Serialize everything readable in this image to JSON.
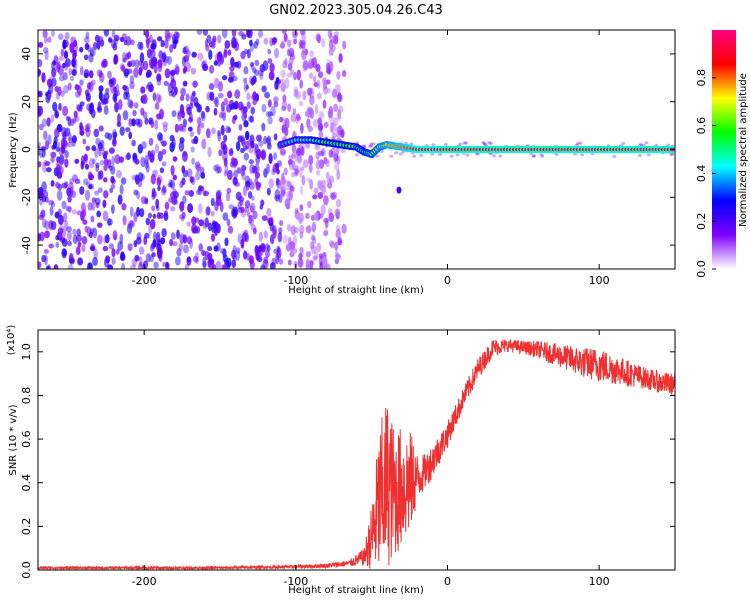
{
  "title": "GN02.2023.305.04.26.C43",
  "colors": {
    "snr_line": "#f03030",
    "background": "#ffffff",
    "frame": "#000000"
  },
  "chart_data": [
    {
      "type": "heatmap",
      "xlabel": "Height of straight line (km)",
      "ylabel": "Frequency (Hz)",
      "xlim": [
        -270,
        150
      ],
      "ylim": [
        -50,
        50
      ],
      "x_ticks": [
        -200,
        -100,
        0,
        100
      ],
      "x_tick_labels": [
        "-200",
        "-100",
        "0",
        "100"
      ],
      "y_ticks": [
        -40,
        -20,
        0,
        20,
        40
      ],
      "y_tick_labels": [
        "-40",
        "-20",
        "0",
        "20",
        "40"
      ],
      "colorbar": {
        "label": "Normalized spectral amplitude",
        "range": [
          0,
          1
        ],
        "ticks": [
          0,
          0.2,
          0.4,
          0.6,
          0.8
        ],
        "tick_labels": [
          "0.0",
          "0.2",
          "0.4",
          "0.6",
          "0.8"
        ],
        "colormap": [
          "#ffffff",
          "#7f00ff",
          "#0000ff",
          "#00ffff",
          "#00ff00",
          "#ffff00",
          "#ff0000",
          "#ff0080"
        ]
      },
      "noise_region_xlim": [
        -270,
        -68
      ],
      "signal_track": [
        {
          "x": -110,
          "y": 2,
          "v": 0.35
        },
        {
          "x": -100,
          "y": 4,
          "v": 0.45
        },
        {
          "x": -90,
          "y": 4,
          "v": 0.5
        },
        {
          "x": -80,
          "y": 3,
          "v": 0.55
        },
        {
          "x": -70,
          "y": 2,
          "v": 0.55
        },
        {
          "x": -60,
          "y": 1,
          "v": 0.6
        },
        {
          "x": -55,
          "y": -1,
          "v": 0.6
        },
        {
          "x": -50,
          "y": -2,
          "v": 0.65
        },
        {
          "x": -45,
          "y": 1,
          "v": 0.7
        },
        {
          "x": -40,
          "y": 2,
          "v": 0.75
        },
        {
          "x": -30,
          "y": 1,
          "v": 0.8
        },
        {
          "x": -20,
          "y": 0,
          "v": 0.85
        },
        {
          "x": 0,
          "y": 0,
          "v": 0.9
        },
        {
          "x": 50,
          "y": 0,
          "v": 0.92
        },
        {
          "x": 100,
          "y": 0,
          "v": 0.9
        },
        {
          "x": 150,
          "y": 0,
          "v": 0.9
        }
      ],
      "outlier": {
        "x": -32,
        "y": -17
      }
    },
    {
      "type": "line",
      "xlabel": "Height of straight line (km)",
      "ylabel": "SNR (10 * v/v)",
      "y_multiplier": "(x10⁴)",
      "xlim": [
        -270,
        150
      ],
      "ylim": [
        0,
        1.1
      ],
      "x_ticks": [
        -200,
        -100,
        0,
        100
      ],
      "x_tick_labels": [
        "-200",
        "-100",
        "0",
        "100"
      ],
      "y_ticks": [
        0,
        0.2,
        0.4,
        0.6,
        0.8,
        1.0
      ],
      "y_tick_labels": [
        "0.0",
        "0.2",
        "0.4",
        "0.6",
        "0.8",
        "1.0"
      ],
      "series": [
        {
          "x": [
            -270,
            -200,
            -150,
            -100,
            -80,
            -65,
            -55,
            -50,
            -45,
            -40,
            -35,
            -30,
            -25,
            -20,
            -15,
            -10,
            -5,
            0,
            10,
            20,
            30,
            40,
            50,
            60,
            70,
            80,
            90,
            100,
            110,
            120,
            130,
            140,
            150
          ],
          "y": [
            0.01,
            0.01,
            0.01,
            0.015,
            0.02,
            0.03,
            0.06,
            0.15,
            0.3,
            0.4,
            0.35,
            0.38,
            0.4,
            0.42,
            0.45,
            0.5,
            0.56,
            0.62,
            0.78,
            0.92,
            1.02,
            1.03,
            1.02,
            1.01,
            0.99,
            0.97,
            0.95,
            0.94,
            0.92,
            0.9,
            0.88,
            0.86,
            0.85
          ],
          "noise_amp": [
            0.005,
            0.006,
            0.006,
            0.008,
            0.01,
            0.015,
            0.04,
            0.15,
            0.35,
            0.4,
            0.3,
            0.28,
            0.25,
            0.12,
            0.08,
            0.08,
            0.07,
            0.06,
            0.05,
            0.05,
            0.04,
            0.03,
            0.03,
            0.04,
            0.05,
            0.06,
            0.07,
            0.08,
            0.07,
            0.06,
            0.05,
            0.05,
            0.05
          ]
        }
      ]
    }
  ]
}
